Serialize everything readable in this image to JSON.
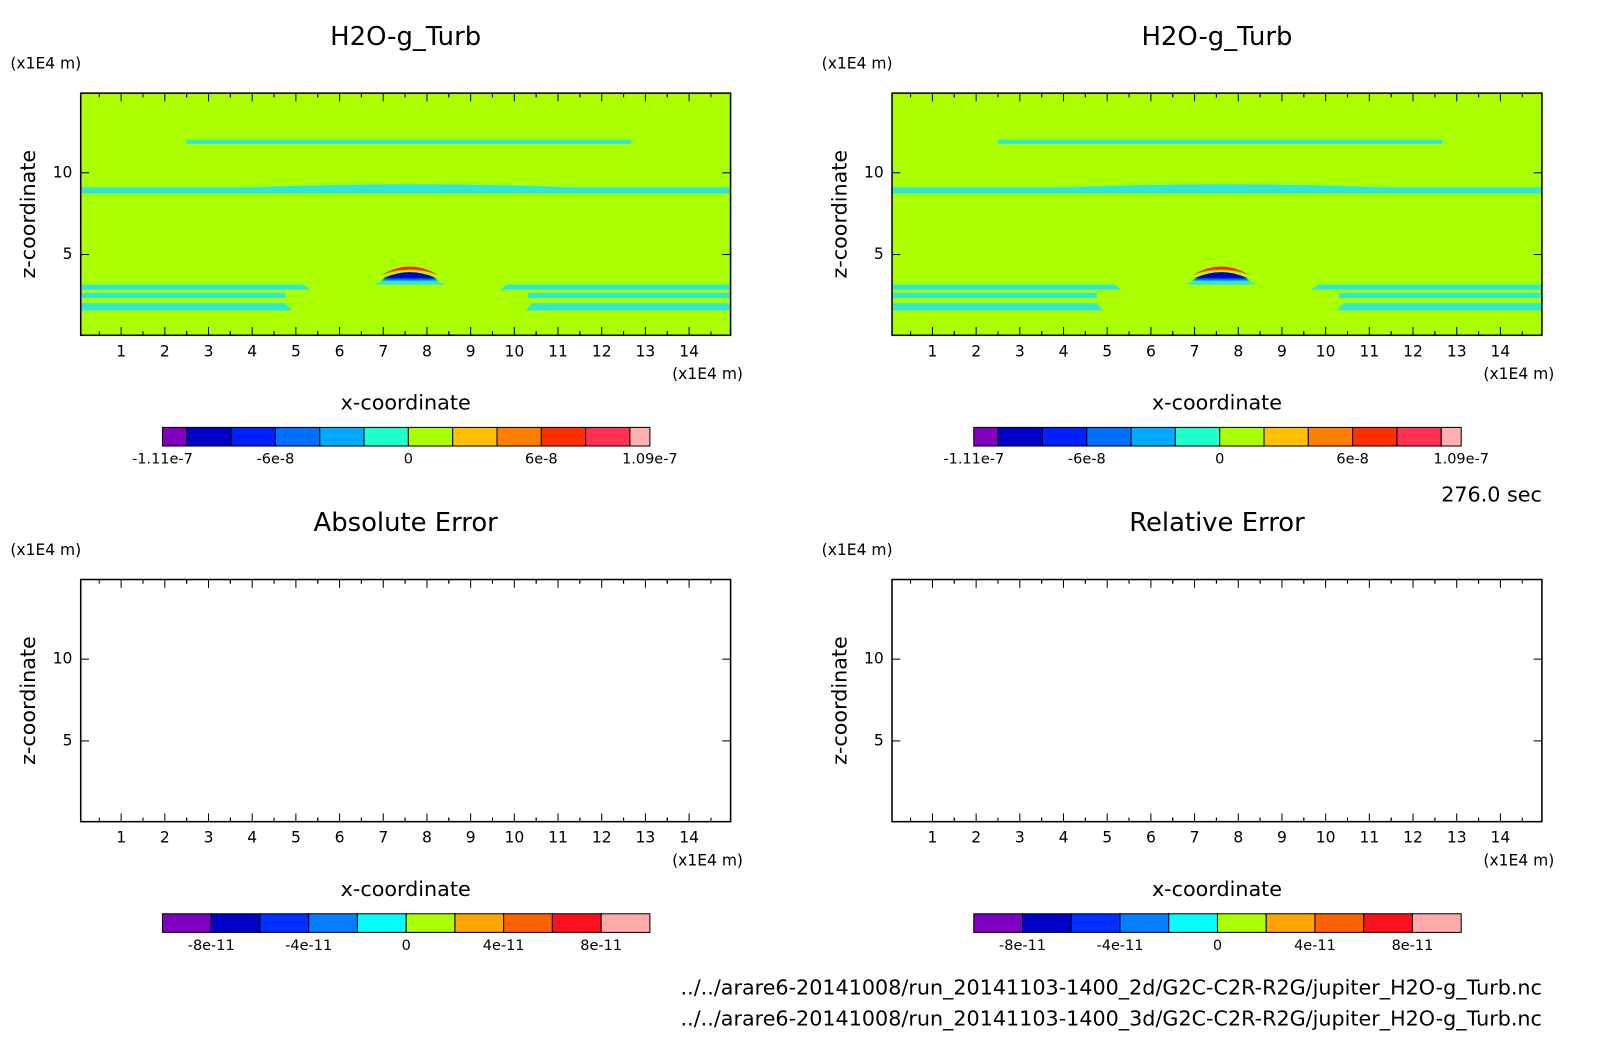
{
  "chart_data": [
    {
      "type": "contour",
      "title": "H2O-g_Turb",
      "x_label": "x-coordinate",
      "y_label": "z-coordinate",
      "x_unit": "(x1E4 m)",
      "y_unit": "(x1E4 m)",
      "xlim": [
        0.075,
        14.95
      ],
      "ylim": [
        0.06,
        14.87
      ],
      "xticks": [
        1,
        2,
        3,
        4,
        5,
        6,
        7,
        8,
        9,
        10,
        11,
        12,
        13,
        14
      ],
      "yticks": [
        5,
        10
      ],
      "filled": true,
      "background": "#aaff00",
      "colorbar": {
        "lim": [
          -1.11e-07,
          1.09e-07
        ],
        "levels": [
          -1e-07,
          -8e-08,
          -6e-08,
          -4e-08,
          -2e-08,
          0,
          2e-08,
          4e-08,
          6e-08,
          8e-08,
          1e-07
        ],
        "colors": [
          "#7f00bf",
          "#0000c8",
          "#0020ff",
          "#0070ff",
          "#00aaff",
          "#20ffcc",
          "#aaff00",
          "#ffc000",
          "#ff8000",
          "#ff3000",
          "#ff3050",
          "#ffb0b0"
        ],
        "ticks": [
          -1.11e-07,
          -6e-08,
          0,
          6e-08,
          1.09e-07
        ]
      }
    },
    {
      "type": "contour",
      "title": "H2O-g_Turb",
      "x_label": "x-coordinate",
      "y_label": "z-coordinate",
      "x_unit": "(x1E4 m)",
      "y_unit": "(x1E4 m)",
      "xlim": [
        0.075,
        14.95
      ],
      "ylim": [
        0.06,
        14.87
      ],
      "xticks": [
        1,
        2,
        3,
        4,
        5,
        6,
        7,
        8,
        9,
        10,
        11,
        12,
        13,
        14
      ],
      "yticks": [
        5,
        10
      ],
      "filled": true,
      "background": "#aaff00",
      "colorbar": {
        "lim": [
          -1.11e-07,
          1.09e-07
        ],
        "levels": [
          -1e-07,
          -8e-08,
          -6e-08,
          -4e-08,
          -2e-08,
          0,
          2e-08,
          4e-08,
          6e-08,
          8e-08,
          1e-07
        ],
        "colors": [
          "#7f00bf",
          "#0000c8",
          "#0020ff",
          "#0070ff",
          "#00aaff",
          "#20ffcc",
          "#aaff00",
          "#ffc000",
          "#ff8000",
          "#ff3000",
          "#ff3050",
          "#ffb0b0"
        ],
        "ticks": [
          -1.11e-07,
          -6e-08,
          0,
          6e-08,
          1.09e-07
        ]
      }
    },
    {
      "type": "contour",
      "title": "Absolute Error",
      "x_label": "x-coordinate",
      "y_label": "z-coordinate",
      "x_unit": "(x1E4 m)",
      "y_unit": "(x1E4 m)",
      "xlim": [
        0.075,
        14.95
      ],
      "ylim": [
        0.06,
        14.87
      ],
      "xticks": [
        1,
        2,
        3,
        4,
        5,
        6,
        7,
        8,
        9,
        10,
        11,
        12,
        13,
        14
      ],
      "yticks": [
        5,
        10
      ],
      "filled": false,
      "colorbar": {
        "lim": [
          -1e-10,
          1e-10
        ],
        "levels": [
          -8e-11,
          -6e-11,
          -4e-11,
          -2e-11,
          0,
          2e-11,
          4e-11,
          6e-11,
          8e-11
        ],
        "colors": [
          "#7f00bf",
          "#0000c8",
          "#0030ff",
          "#0080ff",
          "#00ffff",
          "#aaff00",
          "#ffa500",
          "#ff6000",
          "#ff1020",
          "#ffaaaa"
        ],
        "ticks": [
          -8e-11,
          -4e-11,
          0,
          4e-11,
          8e-11
        ]
      }
    },
    {
      "type": "contour",
      "title": "Relative Error",
      "x_label": "x-coordinate",
      "y_label": "z-coordinate",
      "x_unit": "(x1E4 m)",
      "y_unit": "(x1E4 m)",
      "xlim": [
        0.075,
        14.95
      ],
      "ylim": [
        0.06,
        14.87
      ],
      "xticks": [
        1,
        2,
        3,
        4,
        5,
        6,
        7,
        8,
        9,
        10,
        11,
        12,
        13,
        14
      ],
      "yticks": [
        5,
        10
      ],
      "filled": false,
      "colorbar": {
        "lim": [
          -1e-10,
          1e-10
        ],
        "levels": [
          -8e-11,
          -6e-11,
          -4e-11,
          -2e-11,
          0,
          2e-11,
          4e-11,
          6e-11,
          8e-11
        ],
        "colors": [
          "#7f00bf",
          "#0000c8",
          "#0030ff",
          "#0080ff",
          "#00ffff",
          "#aaff00",
          "#ffa500",
          "#ff6000",
          "#ff1020",
          "#ffaaaa"
        ],
        "ticks": [
          -8e-11,
          -4e-11,
          0,
          4e-11,
          8e-11
        ]
      }
    }
  ],
  "time_label": "276.0 sec",
  "files": [
    "../../arare6-20141008/run_20141103-1400_2d/G2C-C2R-R2G/jupiter_H2O-g_Turb.nc",
    "../../arare6-20141008/run_20141103-1400_3d/G2C-C2R-R2G/jupiter_H2O-g_Turb.nc"
  ]
}
